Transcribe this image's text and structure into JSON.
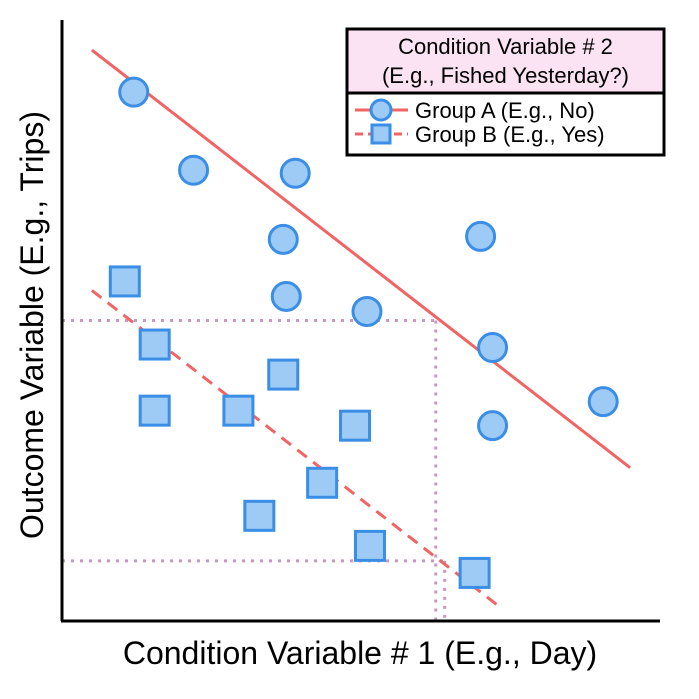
{
  "chart_data": {
    "type": "scatter",
    "title": "",
    "xlabel": "Condition Variable # 1 (E.g., Day)",
    "ylabel": "Outcome Variable (E.g., Trips)",
    "xlim": [
      0,
      100
    ],
    "ylim": [
      0,
      100
    ],
    "grid": false,
    "ticks": "none",
    "colors": {
      "line": "#f06464",
      "marker_fill": "#9ecbf5",
      "marker_stroke": "#3a8ee6",
      "guide": "#c898c0",
      "legend_title_bg": "#fbe3f3"
    },
    "legend": {
      "position": "top-right",
      "title_line1": "Condition Variable # 2",
      "title_line2": "(E.g., Fished Yesterday?)",
      "entries": [
        {
          "label": "Group A (E.g., No)",
          "marker": "circle",
          "line": "solid"
        },
        {
          "label": "Group B (E.g., Yes)",
          "marker": "square",
          "line": "dashed"
        }
      ]
    },
    "series": [
      {
        "name": "Group A (E.g., No)",
        "marker": "circle",
        "points": [
          {
            "x": 12,
            "y": 88
          },
          {
            "x": 22,
            "y": 75
          },
          {
            "x": 39,
            "y": 74.5
          },
          {
            "x": 37,
            "y": 63.5
          },
          {
            "x": 70,
            "y": 64
          },
          {
            "x": 37.5,
            "y": 54
          },
          {
            "x": 51,
            "y": 51.5
          },
          {
            "x": 72,
            "y": 45.5
          },
          {
            "x": 90.5,
            "y": 36.5
          },
          {
            "x": 72,
            "y": 32.5
          }
        ],
        "fit_line": {
          "from": {
            "x": 5,
            "y": 95
          },
          "to": {
            "x": 95,
            "y": 25.5
          },
          "style": "solid"
        }
      },
      {
        "name": "Group B (E.g., Yes)",
        "marker": "square",
        "points": [
          {
            "x": 10.5,
            "y": 56.5
          },
          {
            "x": 15.5,
            "y": 46
          },
          {
            "x": 37,
            "y": 41
          },
          {
            "x": 15.5,
            "y": 35
          },
          {
            "x": 29.5,
            "y": 35
          },
          {
            "x": 49,
            "y": 32.5
          },
          {
            "x": 43.5,
            "y": 23
          },
          {
            "x": 33,
            "y": 17.5
          },
          {
            "x": 51.5,
            "y": 12.5
          },
          {
            "x": 69,
            "y": 8
          }
        ],
        "fit_line": {
          "from": {
            "x": 5,
            "y": 55
          },
          "to": {
            "x": 73,
            "y": 2.5
          },
          "style": "dashed"
        }
      }
    ],
    "guides": [
      {
        "from": {
          "x": 0,
          "y": 50
        },
        "to": {
          "x": 62.5,
          "y": 50
        }
      },
      {
        "from": {
          "x": 62.5,
          "y": 50
        },
        "to": {
          "x": 62.5,
          "y": 0
        }
      },
      {
        "from": {
          "x": 0,
          "y": 10
        },
        "to": {
          "x": 64,
          "y": 10
        }
      },
      {
        "from": {
          "x": 64,
          "y": 10
        },
        "to": {
          "x": 64,
          "y": 0
        }
      }
    ]
  }
}
